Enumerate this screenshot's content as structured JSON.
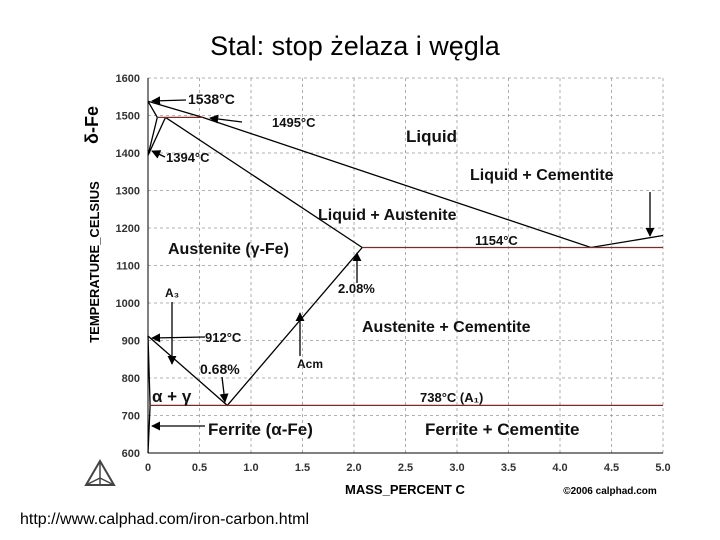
{
  "chart_data": {
    "type": "line",
    "title": "Stal: stop żelaza i węgla",
    "y_label": "TEMPERATURE_CELSIUS",
    "y_label_top": "δ-Fe",
    "x_label": "MASS_PERCENT C",
    "credit": "©2006 calphad.com",
    "source": "http://www.calphad.com/iron-carbon.html",
    "xlim": [
      0,
      5
    ],
    "ylim": [
      600,
      1600
    ],
    "xticks": [
      0,
      0.5,
      {
        "value": 1,
        "label": "1.0"
      },
      1.5,
      {
        "value": 2,
        "label": "2.0"
      },
      2.5,
      {
        "value": 3,
        "label": "3.0"
      },
      3.5,
      {
        "value": 4,
        "label": "4.0"
      },
      4.5,
      {
        "value": 5,
        "label": "5.0"
      }
    ],
    "yticks": [
      600,
      700,
      800,
      900,
      1000,
      1100,
      1200,
      1300,
      1400,
      1500,
      1600
    ],
    "grid": true,
    "series": [
      {
        "color": "#000000",
        "x": [
          0,
          0.53,
          4.3,
          5.0
        ],
        "values": [
          1538,
          1495,
          1148,
          1180
        ]
      },
      {
        "color": "#000000",
        "x": [
          0.17,
          2.08
        ],
        "values": [
          1495,
          1148
        ]
      },
      {
        "color": "#000000",
        "x": [
          0,
          0.09,
          0
        ],
        "values": [
          1538,
          1495,
          1394
        ]
      },
      {
        "color": "#000000",
        "x": [
          0.17,
          0
        ],
        "values": [
          1495,
          1394
        ]
      },
      {
        "color": "#000000",
        "x": [
          0,
          0.77,
          2.08
        ],
        "values": [
          912,
          727,
          1148
        ]
      },
      {
        "color": "#000000",
        "x": [
          0,
          0.02,
          0
        ],
        "values": [
          912,
          727,
          600
        ]
      },
      {
        "color": "#e00000",
        "x": [
          0.09,
          0.53
        ],
        "values": [
          1495,
          1495
        ]
      },
      {
        "color": "#e00000",
        "x": [
          2.08,
          5.0
        ],
        "values": [
          1148,
          1148
        ]
      },
      {
        "color": "#e00000",
        "x": [
          0.02,
          5.0
        ],
        "values": [
          727,
          727
        ]
      }
    ],
    "annotations": [
      "1538°C",
      "1495°C",
      "1394°C",
      "Liquid",
      "Liquid + Cementite",
      "Liquid + Austenite",
      "1154°C",
      "Austenite (γ-Fe)",
      "A₃",
      "2.08%",
      "Austenite + Cementite",
      "912°C",
      "Acm",
      "0.68%",
      "α + γ",
      "738°C (A₁)",
      "Ferrite (α-Fe)",
      "Ferrite + Cementite"
    ]
  }
}
